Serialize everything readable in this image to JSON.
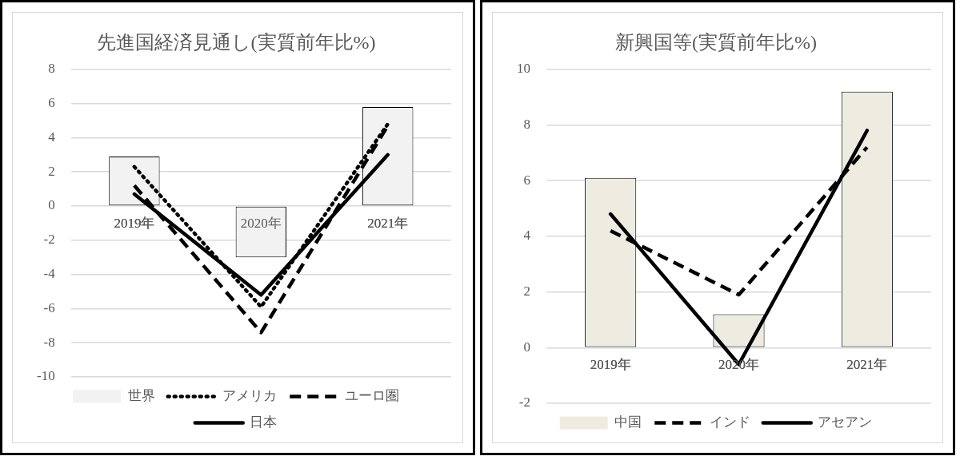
{
  "chart_data": [
    {
      "type": "bar",
      "title": "先進国経済見通し(実質前年比%)",
      "categories": [
        "2019年",
        "2020年",
        "2021年"
      ],
      "ylim": [
        -10,
        8
      ],
      "yticks": [
        -10,
        -8,
        -6,
        -4,
        -2,
        0,
        2,
        4,
        6,
        8
      ],
      "grid": "y",
      "legend": "bottom",
      "marker": "none",
      "series": [
        {
          "name": "世界",
          "color": "#f2f2f2",
          "values": [
            2.9,
            -3.0,
            5.8
          ]
        },
        {
          "name": "アメリカ",
          "type": "line",
          "color": "#000000",
          "line_style": "dotted",
          "values": [
            2.3,
            -5.9,
            4.8
          ]
        },
        {
          "name": "ユーロ圏",
          "type": "line",
          "color": "#000000",
          "line_style": "dashed",
          "values": [
            1.2,
            -7.4,
            4.7
          ]
        },
        {
          "name": "日本",
          "type": "line",
          "color": "#000000",
          "line_style": "solid",
          "values": [
            0.7,
            -5.2,
            3.0
          ]
        }
      ]
    },
    {
      "type": "bar",
      "title": "新興国等(実質前年比%)",
      "categories": [
        "2019年",
        "2020年",
        "2021年"
      ],
      "ylim": [
        -2,
        10
      ],
      "yticks": [
        -2,
        0,
        2,
        4,
        6,
        8,
        10
      ],
      "grid": "y",
      "legend": "bottom",
      "marker": "none",
      "series": [
        {
          "name": "中国",
          "color": "#eeece1",
          "values": [
            6.1,
            1.2,
            9.2
          ]
        },
        {
          "name": "インド",
          "type": "line",
          "color": "#000000",
          "line_style": "dashed",
          "values": [
            4.2,
            1.9,
            7.2
          ]
        },
        {
          "name": "アセアン",
          "type": "line",
          "color": "#000000",
          "line_style": "solid",
          "values": [
            4.8,
            -0.6,
            7.8
          ]
        }
      ]
    }
  ]
}
